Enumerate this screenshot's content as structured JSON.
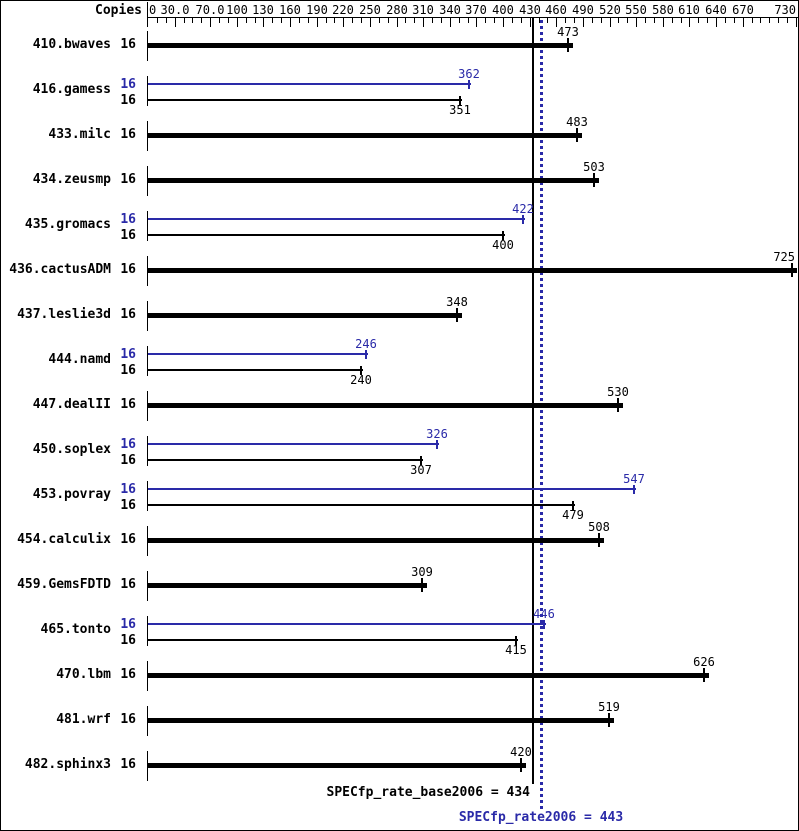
{
  "header": {
    "copies_label": "Copies"
  },
  "colors": {
    "base": "#000000",
    "peak": "#2a2aa8",
    "background": "#ffffff"
  },
  "summary": {
    "base_text": "SPECfp_rate_base2006 = 434",
    "peak_text": "SPECfp_rate2006 = 443",
    "base_value": 434,
    "peak_value": 443
  },
  "chart_data": {
    "type": "bar",
    "orientation": "horizontal",
    "xlim": [
      0,
      730
    ],
    "grid": false,
    "axis_labels": [
      "0",
      "30.0",
      "70.0",
      "100",
      "130",
      "160",
      "190",
      "220",
      "250",
      "280",
      "310",
      "340",
      "370",
      "400",
      "430",
      "460",
      "490",
      "520",
      "550",
      "580",
      "610",
      "640",
      "670",
      "730"
    ],
    "axis_label_values": [
      0,
      30,
      70,
      100,
      130,
      160,
      190,
      220,
      250,
      280,
      310,
      340,
      370,
      400,
      430,
      460,
      490,
      520,
      550,
      580,
      610,
      640,
      670,
      730
    ],
    "minor_tick_step": 10,
    "categories": [
      "410.bwaves",
      "416.gamess",
      "433.milc",
      "434.zeusmp",
      "435.gromacs",
      "436.cactusADM",
      "437.leslie3d",
      "444.namd",
      "447.dealII",
      "450.soplex",
      "453.povray",
      "454.calculix",
      "459.GemsFDTD",
      "465.tonto",
      "470.lbm",
      "481.wrf",
      "482.sphinx3"
    ],
    "copies": [
      16,
      16,
      16,
      16,
      16,
      16,
      16,
      16,
      16,
      16,
      16,
      16,
      16,
      16,
      16,
      16,
      16
    ],
    "series": [
      {
        "name": "base",
        "color": "#000000",
        "values": [
          473,
          351,
          483,
          503,
          400,
          725,
          348,
          240,
          530,
          307,
          479,
          508,
          309,
          415,
          626,
          519,
          420
        ]
      },
      {
        "name": "peak",
        "color": "#2a2aa8",
        "values": [
          null,
          362,
          null,
          null,
          422,
          null,
          null,
          246,
          null,
          326,
          547,
          null,
          null,
          446,
          null,
          null,
          null
        ]
      }
    ],
    "reference_lines": [
      {
        "name": "base_mean",
        "value": 434,
        "style": "solid",
        "color": "#000000"
      },
      {
        "name": "peak_mean",
        "value": 443,
        "style": "dotted",
        "color": "#2a2aa8"
      }
    ]
  }
}
